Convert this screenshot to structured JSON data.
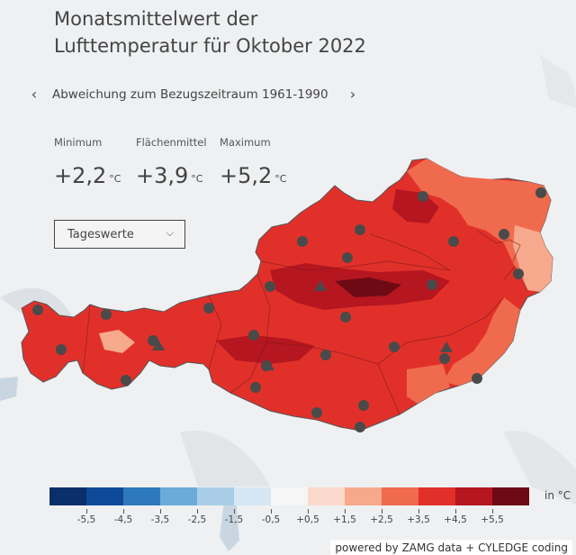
{
  "title_line1": "Monatsmittelwert der",
  "title_line2": "Lufttemperatur für Oktober 2022",
  "nav": {
    "prev_icon": "‹",
    "label": "Abweichung zum Bezugszeitraum 1961-1990",
    "next_icon": "›"
  },
  "stats": {
    "minimum_label": "Minimum",
    "minimum_value": "+2,2",
    "mean_label": "Flächenmittel",
    "mean_value": "+3,9",
    "maximum_label": "Maximum",
    "maximum_value": "+5,2",
    "unit": "°C"
  },
  "select": {
    "value": "Tageswerte",
    "icon": "chevron-down-icon"
  },
  "legend": {
    "unit": "in °C",
    "colors": [
      "#0a2f6b",
      "#0f4a9a",
      "#2e78bd",
      "#6aabd9",
      "#a9cde6",
      "#d6e7f3",
      "#f6f6f6",
      "#fad9cc",
      "#f6a98d",
      "#f06a4e",
      "#e1302a",
      "#b51620",
      "#6e0a14"
    ],
    "ticks": [
      "-5,5",
      "-4,5",
      "-3,5",
      "-2,5",
      "-1,5",
      "-0,5",
      "+0,5",
      "+1,5",
      "+2,5",
      "+3,5",
      "+4,5",
      "+5,5"
    ]
  },
  "map_colors": {
    "base": "#e1302a",
    "warm": "#f06a4e",
    "light": "#f6a98d",
    "hot": "#b51620",
    "very_hot": "#6e0a14",
    "station": "#4a4a4a"
  },
  "credit": "powered by ZAMG data + CYLEDGE coding"
}
